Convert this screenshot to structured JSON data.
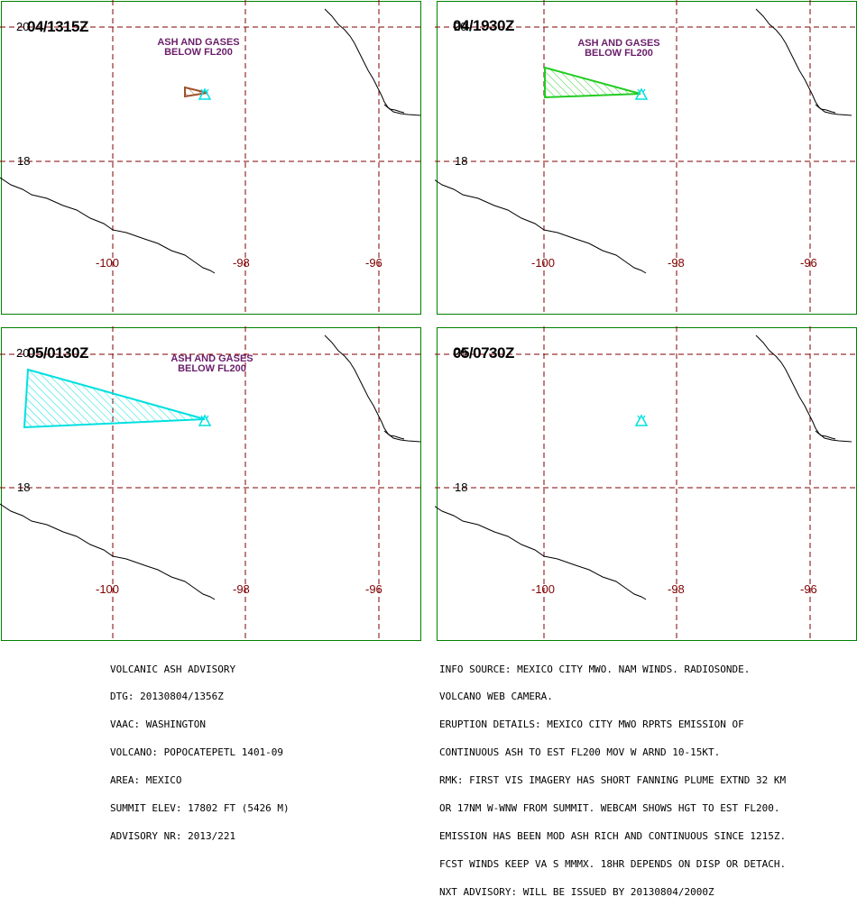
{
  "colors": {
    "frame": "#008000",
    "grid": "#800000",
    "coast": "#000000",
    "volcano": "#00e0e0",
    "note": "#6a1e6a",
    "plume_1315": "#a0522d",
    "plume_1930": "#22cc22",
    "plume_0130": "#00e0e0"
  },
  "lon_labels": [
    "-100",
    "-98",
    "-96"
  ],
  "lat_labels": [
    "20",
    "18"
  ],
  "panels": [
    {
      "time": "04/1315Z",
      "note": [
        "ASH AND GASES",
        "BELOW FL200"
      ],
      "plume": "small",
      "plume_color": "#a0522d"
    },
    {
      "time": "04/1930Z",
      "note": [
        "ASH AND GASES",
        "BELOW FL200"
      ],
      "plume": "medium",
      "plume_color": "#22cc22"
    },
    {
      "time": "05/0130Z",
      "note": [
        "ASH AND GASES",
        "BELOW FL200"
      ],
      "plume": "large",
      "plume_color": "#00e0e0"
    },
    {
      "time": "05/0730Z",
      "note": [],
      "plume": "none",
      "plume_color": ""
    }
  ],
  "advisory": [
    "VOLCANIC ASH ADVISORY",
    "DTG: 20130804/1356Z",
    "VAAC: WASHINGTON",
    "VOLCANO: POPOCATEPETL 1401-09",
    "AREA: MEXICO",
    "SUMMIT ELEV: 17802 FT (5426 M)",
    "ADVISORY NR: 2013/221"
  ],
  "info": [
    "INFO SOURCE: MEXICO CITY MWO. NAM WINDS. RADIOSONDE.",
    "VOLCANO WEB CAMERA.",
    "ERUPTION DETAILS: MEXICO CITY MWO RPRTS EMISSION OF",
    "CONTINUOUS ASH TO EST FL200 MOV W ARND 10-15KT.",
    "RMK: FIRST VIS IMAGERY HAS SHORT FANNING PLUME EXTND 32 KM",
    "OR 17NM W-WNW FROM SUMMIT. WEBCAM SHOWS HGT TO EST FL200.",
    "EMISSION HAS BEEN MOD ASH RICH AND CONTINUOUS SINCE 1215Z.",
    "FCST WINDS KEEP VA S MMMX. 18HR DEPENDS ON DISP OR DETACH.",
    "NXT ADVISORY: WILL BE ISSUED BY 20130804/2000Z"
  ]
}
